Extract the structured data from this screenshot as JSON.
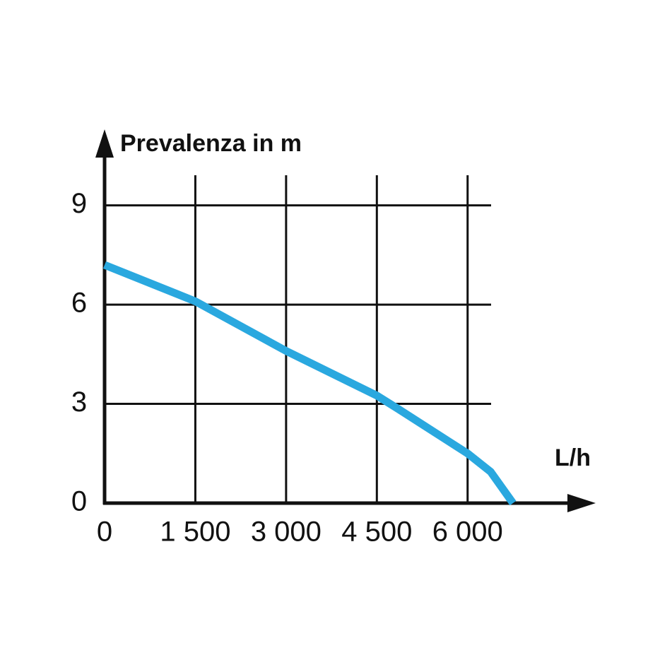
{
  "chart_data": {
    "type": "line",
    "y_label": "Prevalenza in m",
    "x_label": "L/h",
    "xlim": [
      0,
      8000
    ],
    "ylim": [
      0,
      11.3
    ],
    "xticks": [
      0,
      {
        "value": 1500,
        "label": "1 500"
      },
      {
        "value": 3000,
        "label": "3 000"
      },
      {
        "value": 4500,
        "label": "4 500"
      },
      {
        "value": 6000,
        "label": "6 000"
      }
    ],
    "yticks": [
      0,
      3,
      6,
      9
    ],
    "grid": true,
    "series": [
      {
        "color": "#2aa8df",
        "x": [
          0,
          1500,
          3000,
          4500,
          4850,
          6000,
          6380,
          6750
        ],
        "values": [
          7.2,
          6.1,
          4.6,
          3.25,
          2.85,
          1.5,
          0.95,
          0
        ]
      }
    ]
  }
}
